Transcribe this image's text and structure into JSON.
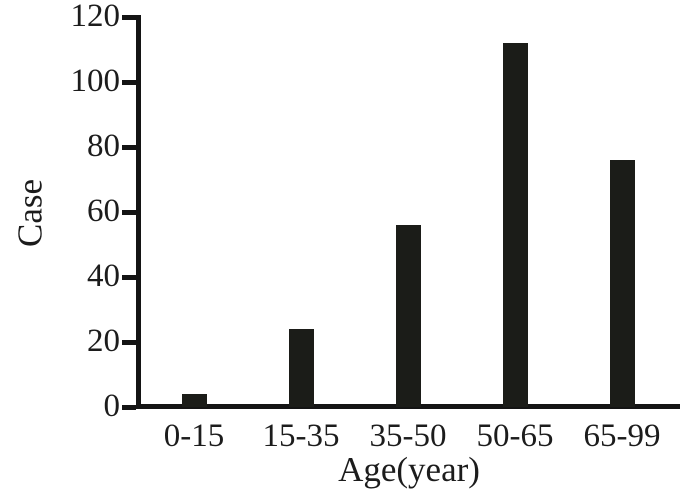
{
  "chart_data": {
    "type": "bar",
    "title": "",
    "xlabel": "Age(year)",
    "ylabel": "Case",
    "categories": [
      "0-15",
      "15-35",
      "35-50",
      "50-65",
      "65-99"
    ],
    "values": [
      4,
      24,
      56,
      112,
      76
    ],
    "ylim": [
      0,
      120
    ],
    "yticks": [
      0,
      20,
      40,
      60,
      80,
      100,
      120
    ],
    "grid": false,
    "legend": "none",
    "bar_color": "#1b1c18",
    "axis_color": "#141414",
    "text_color": "#1c1c1c",
    "background_color": "#ffffff"
  }
}
